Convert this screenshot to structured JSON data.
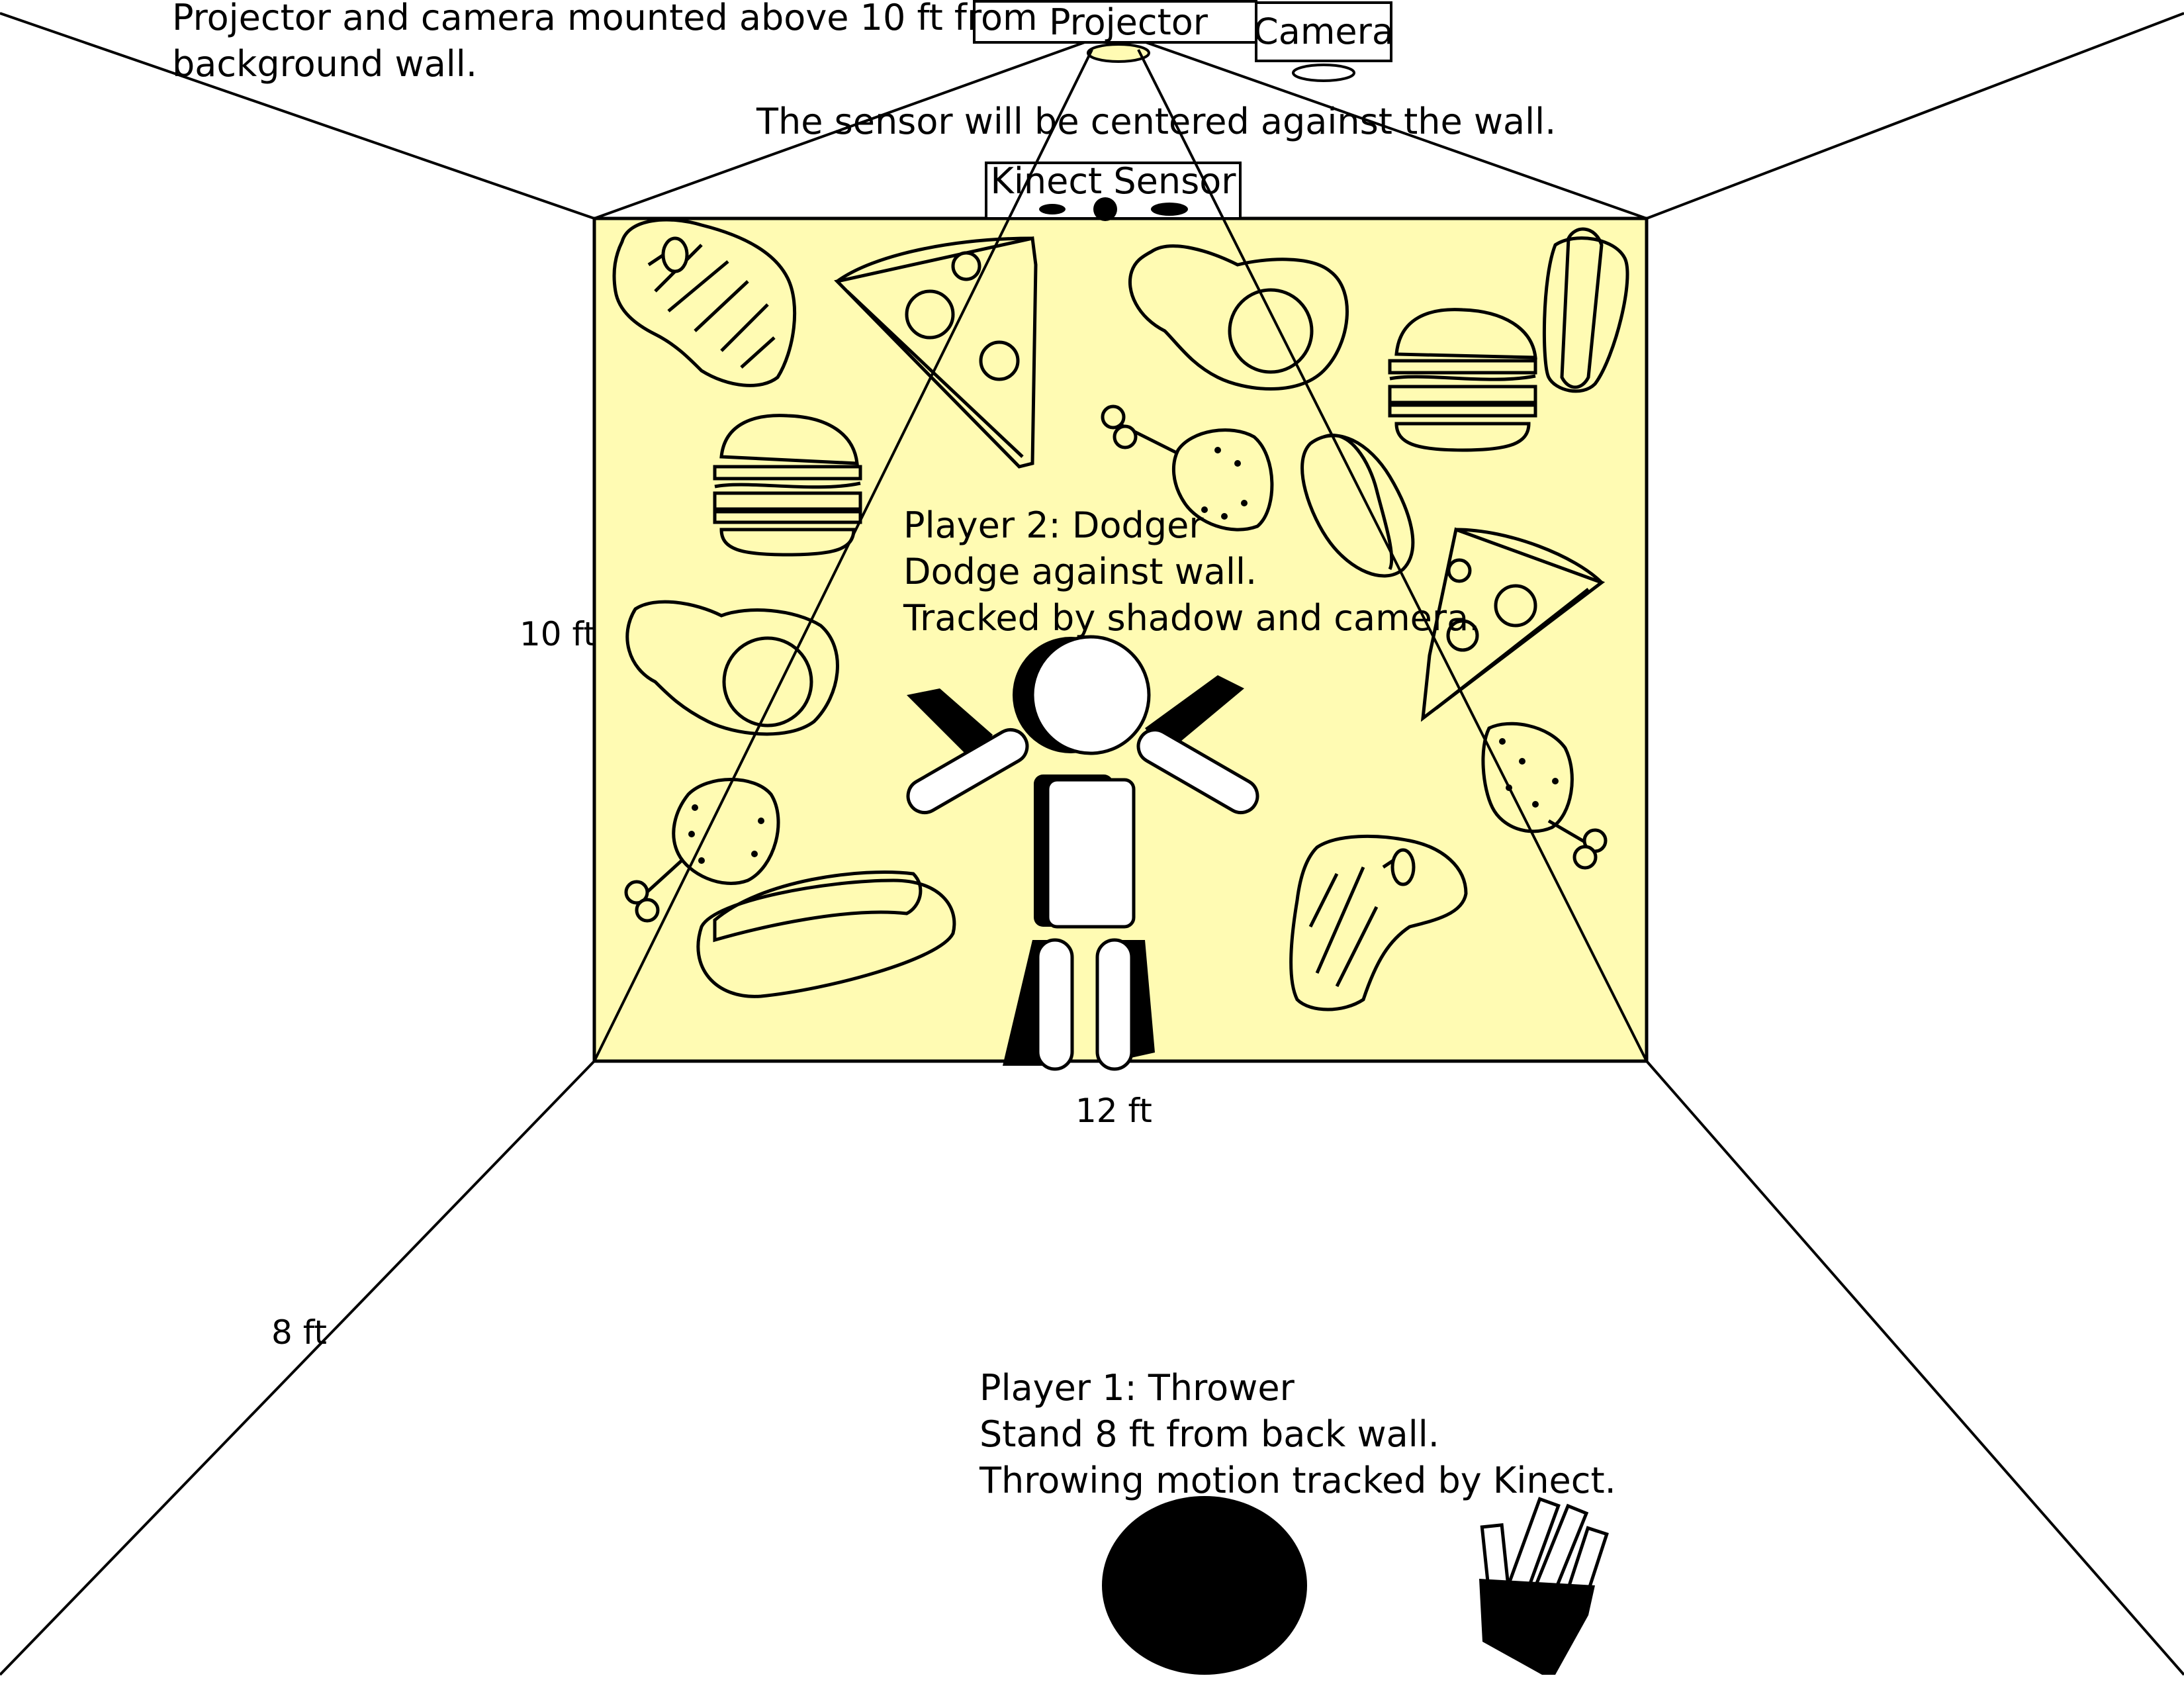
{
  "mount_note": {
    "line1": "Projector and camera mounted above 10 ft from",
    "line2": "background wall."
  },
  "projector_label": "Projector",
  "camera_label": "Camera",
  "sensor_note": "The sensor will be centered against the wall.",
  "kinect_label": "Kinect Sensor",
  "player2": {
    "line1": "Player 2: Dodger",
    "line2": "Dodge against wall.",
    "line3": "Tracked by shadow and camera."
  },
  "player1": {
    "line1": "Player 1: Thrower",
    "line2": "Stand 8 ft from back wall.",
    "line3": "Throwing motion tracked by Kinect."
  },
  "dimensions": {
    "wall_height": "10 ft",
    "wall_width": "12 ft",
    "floor_depth": "8 ft"
  },
  "colors": {
    "projection": "#fffbb3",
    "outline": "#000000"
  }
}
